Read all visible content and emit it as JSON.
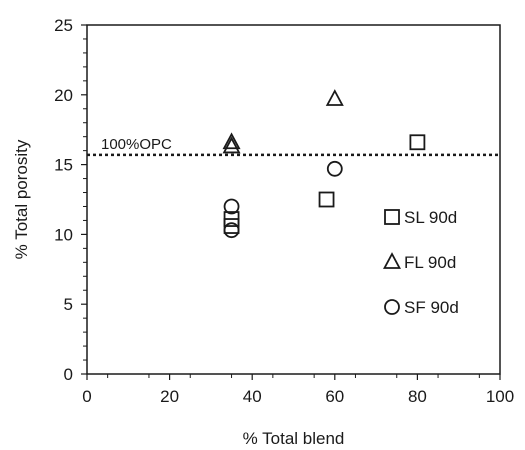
{
  "chart_data": {
    "type": "scatter",
    "xlabel": "% Total blend",
    "ylabel": "% Total porosity",
    "xlim": [
      0,
      100
    ],
    "ylim": [
      0,
      25
    ],
    "x_ticks": [
      "0",
      "20",
      "40",
      "60",
      "80",
      "100"
    ],
    "y_ticks": [
      "0",
      "5",
      "10",
      "15",
      "20",
      "25"
    ],
    "grid": false,
    "legend_position": "right",
    "reference_line": {
      "label": "100%OPC",
      "y": 15.7,
      "style": "dotted"
    },
    "series": [
      {
        "name": "SL 90d",
        "marker": "square",
        "points": [
          {
            "x": 35,
            "y": 10.6
          },
          {
            "x": 35,
            "y": 11.1
          },
          {
            "x": 58,
            "y": 12.5
          },
          {
            "x": 80,
            "y": 16.6
          }
        ]
      },
      {
        "name": "FL 90d",
        "marker": "triangle",
        "points": [
          {
            "x": 35,
            "y": 16.3
          },
          {
            "x": 35,
            "y": 16.6
          },
          {
            "x": 60,
            "y": 19.7
          }
        ]
      },
      {
        "name": "SF 90d",
        "marker": "circle",
        "points": [
          {
            "x": 35,
            "y": 12.0
          },
          {
            "x": 35,
            "y": 10.3
          },
          {
            "x": 60,
            "y": 14.7
          }
        ]
      }
    ],
    "colors": {
      "marker_stroke": "#1a1a1a",
      "axis": "#1a1a1a"
    }
  }
}
